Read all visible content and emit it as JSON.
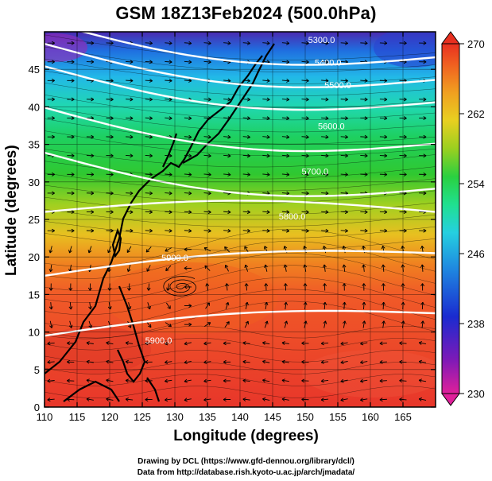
{
  "title": "GSM 18Z13Feb2024 (500.0hPa)",
  "xlabel": "Longitude (degrees)",
  "ylabel": "Latitude  (degrees)",
  "credits": [
    "Drawing by DCL (https://www.gfd-dennou.org/library/dcl/)",
    "Data from http://database.rish.kyoto-u.ac.jp/arch/jmadata/"
  ],
  "map": {
    "lon_range": [
      110,
      170
    ],
    "lat_range": [
      0,
      50
    ],
    "lon_ticks": [
      "110",
      "115",
      "120",
      "125",
      "130",
      "135",
      "140",
      "145",
      "150",
      "155",
      "160",
      "165"
    ],
    "lat_ticks": [
      "0",
      "5",
      "10",
      "15",
      "20",
      "25",
      "30",
      "35",
      "40",
      "45"
    ]
  },
  "colorbar": {
    "labels": [
      "270",
      "262",
      "254",
      "246",
      "238",
      "230"
    ],
    "range": [
      230,
      270
    ],
    "colors": [
      "#e0209a",
      "#6a1ab8",
      "#1a2bd0",
      "#1f7be0",
      "#25c8e0",
      "#20e0a0",
      "#1ed050",
      "#7ed020",
      "#e0d020",
      "#f0a020",
      "#f06a20",
      "#e83020"
    ]
  },
  "contours": [
    {
      "label": "5300.0",
      "lon": 152.5,
      "lat": 48.5
    },
    {
      "label": "5400.0",
      "lon": 153.5,
      "lat": 45.5
    },
    {
      "label": "5500.0",
      "lon": 155,
      "lat": 42.5
    },
    {
      "label": "5600.0",
      "lon": 154,
      "lat": 37
    },
    {
      "label": "5700.0",
      "lon": 151.5,
      "lat": 31
    },
    {
      "label": "5800.0",
      "lon": 148,
      "lat": 25
    },
    {
      "label": "5900.0",
      "lon": 130,
      "lat": 19.5
    },
    {
      "label": "5900.0",
      "lon": 127.5,
      "lat": 8.5
    }
  ]
}
